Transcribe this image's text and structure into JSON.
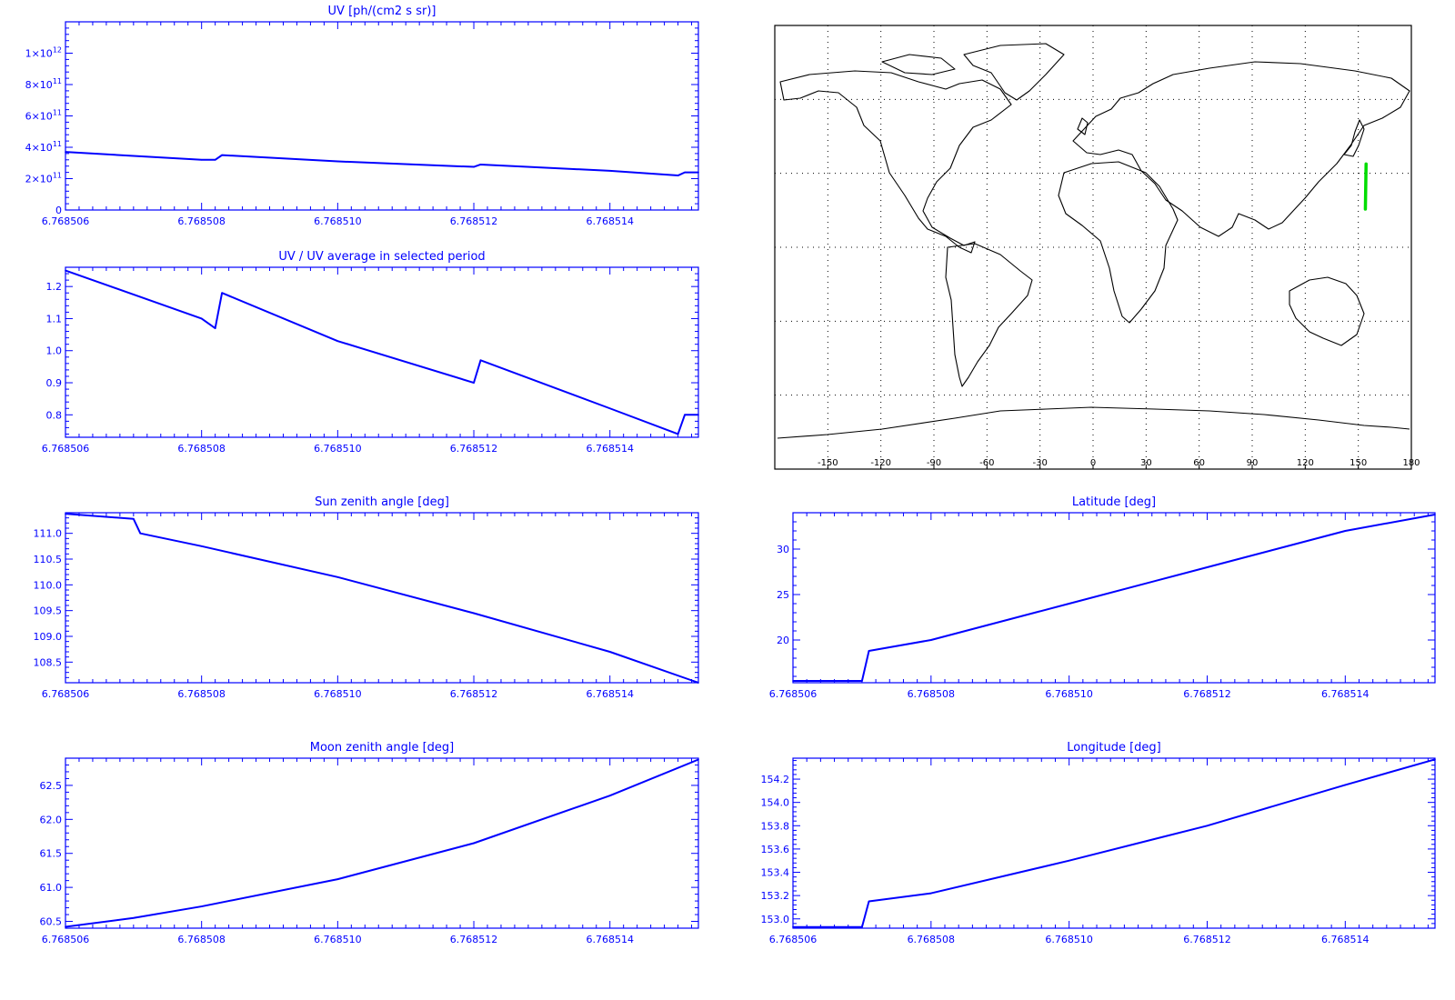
{
  "chart_data": [
    {
      "type": "line",
      "title": "UV [ph/(cm2 s sr)]",
      "x": [
        6.768506,
        6.768508,
        6.7685082,
        6.7685083,
        6.76851,
        6.768512,
        6.7685121,
        6.768514,
        6.768515,
        6.7685151,
        6.7685153
      ],
      "y": [
        370000000000.0,
        320000000000.0,
        320000000000.0,
        350000000000.0,
        310000000000.0,
        275000000000.0,
        290000000000.0,
        250000000000.0,
        220000000000.0,
        240000000000.0,
        240000000000.0
      ],
      "xlim": [
        6.768506,
        6.7685153
      ],
      "ylim": [
        0,
        1200000000000.0
      ],
      "xticks": [
        "6.768506",
        "6.768508",
        "6.768510",
        "6.768512",
        "6.768514"
      ],
      "yticks": [
        {
          "v": 0,
          "b": "0",
          "e": ""
        },
        {
          "v": 200000000000.0,
          "b": "2×10",
          "e": "11"
        },
        {
          "v": 400000000000.0,
          "b": "4×10",
          "e": "11"
        },
        {
          "v": 600000000000.0,
          "b": "6×10",
          "e": "11"
        },
        {
          "v": 800000000000.0,
          "b": "8×10",
          "e": "11"
        },
        {
          "v": 1000000000000.0,
          "b": "1×10",
          "e": "12"
        }
      ],
      "color": "#0000ff"
    },
    {
      "type": "line",
      "title": "UV / UV average in selected period",
      "x": [
        6.768506,
        6.768508,
        6.7685082,
        6.7685083,
        6.76851,
        6.768512,
        6.7685121,
        6.768514,
        6.768515,
        6.7685151,
        6.7685153
      ],
      "y": [
        1.25,
        1.1,
        1.07,
        1.18,
        1.03,
        0.9,
        0.97,
        0.82,
        0.74,
        0.8,
        0.8
      ],
      "xlim": [
        6.768506,
        6.7685153
      ],
      "ylim": [
        0.73,
        1.26
      ],
      "xticks": [
        "6.768506",
        "6.768508",
        "6.768510",
        "6.768512",
        "6.768514"
      ],
      "yticks": [
        {
          "v": 0.8,
          "b": "0.8",
          "e": ""
        },
        {
          "v": 0.9,
          "b": "0.9",
          "e": ""
        },
        {
          "v": 1.0,
          "b": "1.0",
          "e": ""
        },
        {
          "v": 1.1,
          "b": "1.1",
          "e": ""
        },
        {
          "v": 1.2,
          "b": "1.2",
          "e": ""
        }
      ],
      "color": "#0000ff"
    },
    {
      "type": "line",
      "title": "Sun zenith angle [deg]",
      "x": [
        6.768506,
        6.768507,
        6.7685071,
        6.768508,
        6.76851,
        6.768512,
        6.768514,
        6.7685153
      ],
      "y": [
        111.38,
        111.28,
        111.0,
        110.75,
        110.15,
        109.45,
        108.7,
        108.1
      ],
      "xlim": [
        6.768506,
        6.7685153
      ],
      "ylim": [
        108.1,
        111.4
      ],
      "xticks": [
        "6.768506",
        "6.768508",
        "6.768510",
        "6.768512",
        "6.768514"
      ],
      "yticks": [
        {
          "v": 108.5,
          "b": "108.5",
          "e": ""
        },
        {
          "v": 109.0,
          "b": "109.0",
          "e": ""
        },
        {
          "v": 109.5,
          "b": "109.5",
          "e": ""
        },
        {
          "v": 110.0,
          "b": "110.0",
          "e": ""
        },
        {
          "v": 110.5,
          "b": "110.5",
          "e": ""
        },
        {
          "v": 111.0,
          "b": "111.0",
          "e": ""
        }
      ],
      "color": "#0000ff"
    },
    {
      "type": "line",
      "title": "Moon zenith angle [deg]",
      "x": [
        6.768506,
        6.768507,
        6.768508,
        6.76851,
        6.768512,
        6.768514,
        6.7685153
      ],
      "y": [
        60.42,
        60.55,
        60.72,
        61.12,
        61.65,
        62.35,
        62.88
      ],
      "xlim": [
        6.768506,
        6.7685153
      ],
      "ylim": [
        60.4,
        62.9
      ],
      "xticks": [
        "6.768506",
        "6.768508",
        "6.768510",
        "6.768512",
        "6.768514"
      ],
      "yticks": [
        {
          "v": 60.5,
          "b": "60.5",
          "e": ""
        },
        {
          "v": 61.0,
          "b": "61.0",
          "e": ""
        },
        {
          "v": 61.5,
          "b": "61.5",
          "e": ""
        },
        {
          "v": 62.0,
          "b": "62.0",
          "e": ""
        },
        {
          "v": 62.5,
          "b": "62.5",
          "e": ""
        }
      ],
      "color": "#0000ff"
    },
    {
      "type": "line",
      "title": "Latitude [deg]",
      "x": [
        6.768506,
        6.768507,
        6.7685071,
        6.768508,
        6.76851,
        6.768512,
        6.768514,
        6.7685153
      ],
      "y": [
        15.5,
        15.5,
        18.8,
        20.0,
        24.0,
        28.0,
        32.0,
        33.8
      ],
      "xlim": [
        6.768506,
        6.7685153
      ],
      "ylim": [
        15.3,
        34.0
      ],
      "xticks": [
        "6.768506",
        "6.768508",
        "6.768510",
        "6.768512",
        "6.768514"
      ],
      "yticks": [
        {
          "v": 20,
          "b": "20",
          "e": ""
        },
        {
          "v": 25,
          "b": "25",
          "e": ""
        },
        {
          "v": 30,
          "b": "30",
          "e": ""
        }
      ],
      "color": "#0000ff"
    },
    {
      "type": "line",
      "title": "Longitude [deg]",
      "x": [
        6.768506,
        6.768507,
        6.7685071,
        6.768508,
        6.76851,
        6.768512,
        6.768514,
        6.7685153
      ],
      "y": [
        152.93,
        152.93,
        153.15,
        153.22,
        153.5,
        153.8,
        154.15,
        154.37
      ],
      "xlim": [
        6.768506,
        6.7685153
      ],
      "ylim": [
        152.92,
        154.38
      ],
      "xticks": [
        "6.768506",
        "6.768508",
        "6.768510",
        "6.768512",
        "6.768514"
      ],
      "yticks": [
        {
          "v": 153.0,
          "b": "153.0",
          "e": ""
        },
        {
          "v": 153.2,
          "b": "153.2",
          "e": ""
        },
        {
          "v": 153.4,
          "b": "153.4",
          "e": ""
        },
        {
          "v": 153.6,
          "b": "153.6",
          "e": ""
        },
        {
          "v": 153.8,
          "b": "153.8",
          "e": ""
        },
        {
          "v": 154.0,
          "b": "154.0",
          "e": ""
        },
        {
          "v": 154.2,
          "b": "154.2",
          "e": ""
        }
      ],
      "color": "#0000ff"
    }
  ],
  "map": {
    "lon_range": [
      -180,
      180
    ],
    "lat_range": [
      -90,
      90
    ],
    "lon_ticks": [
      "-150",
      "-120",
      "-90",
      "-60",
      "-30",
      "0",
      "30",
      "60",
      "90",
      "120",
      "150",
      "180"
    ],
    "track": {
      "lon": [
        154.0,
        154.4
      ],
      "lat": [
        15.5,
        33.8
      ],
      "color": "#00dd00"
    },
    "grid": true
  }
}
